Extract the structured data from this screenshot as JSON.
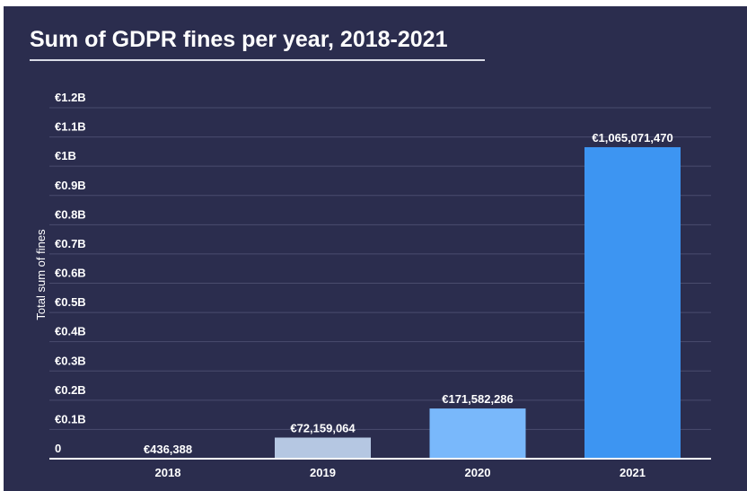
{
  "chart_data": {
    "type": "bar",
    "title": "Sum of GDPR fines per year, 2018-2021",
    "xlabel": "",
    "ylabel": "Total sum of fines",
    "categories": [
      "2018",
      "2019",
      "2020",
      "2021"
    ],
    "values": [
      436388,
      72159064,
      171582286,
      1065071470
    ],
    "value_labels": [
      "€436,388",
      "€72,159,064",
      "€171,582,286",
      "€1,065,071,470"
    ],
    "bar_colors": [
      "#b5c7e2",
      "#b5c7e2",
      "#79b8fb",
      "#3d95f2"
    ],
    "ylim": [
      0,
      1200000000
    ],
    "yticks": [
      0,
      100000000,
      200000000,
      300000000,
      400000000,
      500000000,
      600000000,
      700000000,
      800000000,
      900000000,
      1000000000,
      1100000000,
      1200000000
    ],
    "ytick_labels": [
      "0",
      "€0.1B",
      "€0.2B",
      "€0.3B",
      "€0.4B",
      "€0.5B",
      "€0.6B",
      "€0.7B",
      "€0.8B",
      "€0.9B",
      "€1B",
      "€1.1B",
      "€1.2B"
    ],
    "grid": true,
    "legend": "none",
    "colors": {
      "background": "#2b2d4e",
      "gridline": "#4a4d6e",
      "axis": "#ffffff",
      "text": "#ffffff"
    }
  }
}
